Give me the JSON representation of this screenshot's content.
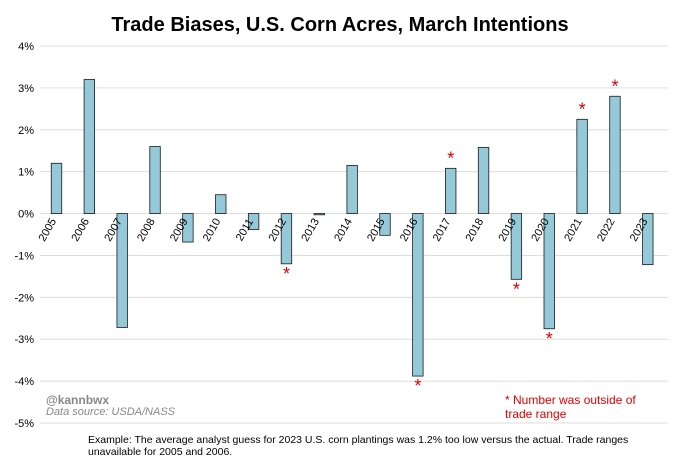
{
  "chart_data": {
    "type": "bar",
    "title": "Trade Biases, U.S. Corn Acres, March Intentions",
    "xlabel": "",
    "ylabel": "",
    "ylim": [
      -5,
      4
    ],
    "ytick_values": [
      4,
      3,
      2,
      1,
      0,
      -1,
      -2,
      -3,
      -4,
      -5
    ],
    "ytick_labels": [
      "4%",
      "3%",
      "2%",
      "1%",
      "0%",
      "-1%",
      "-2%",
      "-3%",
      "-4%",
      "-5%"
    ],
    "categories": [
      "2005",
      "2006",
      "2007",
      "2008",
      "2009",
      "2010",
      "2011",
      "2012",
      "2013",
      "2014",
      "2015",
      "2016",
      "2017",
      "2018",
      "2019",
      "2020",
      "2021",
      "2022",
      "2023"
    ],
    "values": [
      1.2,
      3.2,
      -2.72,
      1.6,
      -0.68,
      0.45,
      -0.38,
      -1.2,
      -0.03,
      1.15,
      -0.52,
      -3.88,
      1.08,
      1.58,
      -1.57,
      -2.75,
      2.25,
      2.8,
      -1.22
    ],
    "outside_range_marker": "*",
    "outside_range_years": [
      "2012",
      "2016",
      "2017",
      "2019",
      "2020",
      "2021",
      "2022"
    ],
    "credit": "@kannbwx",
    "source": "Data source: USDA/NASS",
    "legend_note": "* Number was outside of trade range",
    "caption": "Example: The average analyst guess for 2023 U.S. corn plantings was 1.2% too low versus the actual. Trade ranges unavailable for 2005 and 2006.",
    "colors": {
      "bar": "#93c9d9",
      "bar_edge": "#1a1a1a",
      "marker": "#e00000",
      "grid": "#dddddd"
    }
  }
}
